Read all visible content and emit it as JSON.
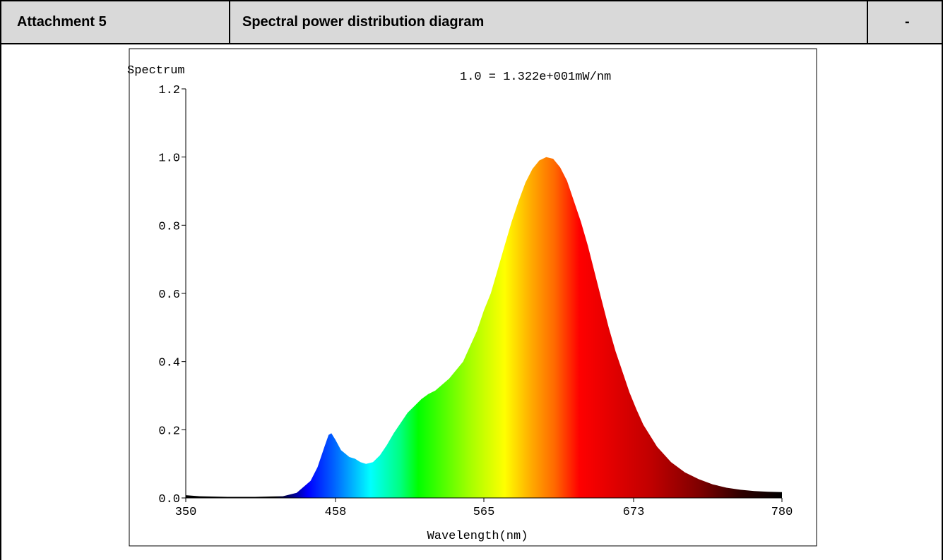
{
  "header": {
    "cell1": "Attachment 5",
    "cell2": "Spectral power distribution diagram",
    "cell3": "-"
  },
  "chart_data": {
    "type": "area",
    "title": "",
    "annotation": "1.0 = 1.322e+001mW/nm",
    "ylabel": "Spectrum",
    "xlabel": "Wavelength(nm)",
    "xlim": [
      350,
      780
    ],
    "ylim": [
      0,
      1.2
    ],
    "x_ticks": [
      350,
      458,
      565,
      673,
      780
    ],
    "x_tick_labels": [
      "350",
      "458",
      "565",
      "673",
      "780"
    ],
    "y_ticks": [
      0,
      0.2,
      0.4,
      0.6,
      0.8,
      1.0,
      1.2
    ],
    "y_tick_labels": [
      "0.0",
      "0.2",
      "0.4",
      "0.6",
      "0.8",
      "1.0",
      "1.2"
    ],
    "grid": false,
    "fill": "visible-spectrum-gradient",
    "series": [
      {
        "x": [
          350,
          360,
          380,
          400,
          420,
          430,
          440,
          445,
          450,
          453,
          455,
          458,
          462,
          468,
          472,
          476,
          480,
          485,
          490,
          495,
          500,
          505,
          510,
          515,
          520,
          525,
          530,
          540,
          550,
          560,
          565,
          570,
          575,
          580,
          585,
          590,
          595,
          600,
          605,
          610,
          615,
          620,
          625,
          630,
          635,
          640,
          645,
          650,
          655,
          660,
          665,
          670,
          675,
          680,
          690,
          700,
          710,
          720,
          730,
          740,
          750,
          760,
          770,
          780
        ],
        "values": [
          0.008,
          0.005,
          0.003,
          0.003,
          0.005,
          0.015,
          0.05,
          0.09,
          0.15,
          0.185,
          0.19,
          0.17,
          0.14,
          0.12,
          0.115,
          0.105,
          0.1,
          0.105,
          0.125,
          0.155,
          0.19,
          0.22,
          0.25,
          0.27,
          0.29,
          0.305,
          0.315,
          0.35,
          0.4,
          0.49,
          0.55,
          0.6,
          0.67,
          0.74,
          0.81,
          0.87,
          0.925,
          0.965,
          0.99,
          1.0,
          0.995,
          0.97,
          0.93,
          0.87,
          0.81,
          0.74,
          0.66,
          0.58,
          0.5,
          0.43,
          0.37,
          0.31,
          0.26,
          0.215,
          0.15,
          0.105,
          0.075,
          0.055,
          0.04,
          0.03,
          0.024,
          0.02,
          0.018,
          0.017
        ]
      }
    ]
  }
}
